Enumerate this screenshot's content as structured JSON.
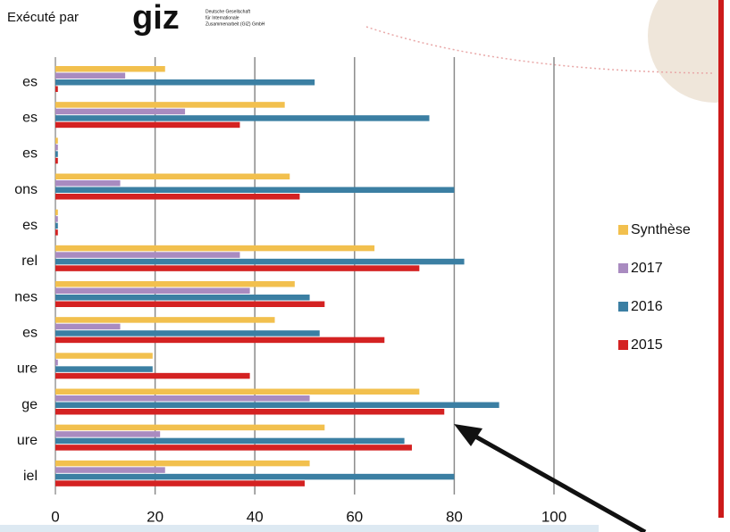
{
  "header": {
    "text": "Exécuté par",
    "logo": "giz",
    "logo_caption": [
      "Deutsche Gesellschaft",
      "für Internationale",
      "Zusammenarbeit (GIZ) GmbH"
    ]
  },
  "chart_data": {
    "type": "hbar",
    "categories": [
      "es",
      "es",
      "es",
      "ons",
      "es",
      "rel",
      "nes",
      "es",
      "ure",
      "ge",
      "ure",
      "iel"
    ],
    "series": [
      {
        "name": "Synthèse",
        "color": "#f2c04e",
        "values": [
          22,
          46,
          0.5,
          47,
          0.5,
          64,
          48,
          44,
          19.5,
          73,
          54,
          51
        ]
      },
      {
        "name": "2017",
        "color": "#a98bc0",
        "values": [
          14,
          26,
          0.5,
          13,
          0.5,
          37,
          39,
          13,
          0.5,
          51,
          21,
          22
        ]
      },
      {
        "name": "2016",
        "color": "#3b7fa3",
        "values": [
          52,
          75,
          0.5,
          80,
          0.5,
          82,
          51,
          53,
          19.5,
          89,
          70,
          80
        ]
      },
      {
        "name": "2015",
        "color": "#d42222",
        "values": [
          0.5,
          37,
          0.5,
          49,
          0.5,
          73,
          54,
          66,
          39,
          78,
          71.5,
          50
        ]
      }
    ],
    "xlim": [
      0,
      100
    ],
    "xticks": [
      0,
      20,
      40,
      60,
      80,
      100
    ],
    "grid": true,
    "legend": "right"
  }
}
